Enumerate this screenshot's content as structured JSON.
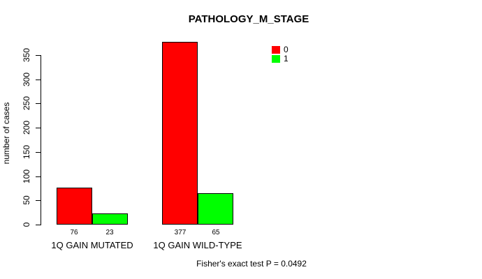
{
  "chart_data": {
    "type": "bar",
    "title": "PATHOLOGY_M_STAGE",
    "ylabel": "number of cases",
    "xlabel": "",
    "categories": [
      "1Q GAIN MUTATED",
      "1Q GAIN WILD-TYPE"
    ],
    "series": [
      {
        "name": "0",
        "color": "#ff0000",
        "values": [
          76,
          377
        ]
      },
      {
        "name": "1",
        "color": "#00ff00",
        "values": [
          23,
          65
        ]
      }
    ],
    "bar_value_labels": [
      [
        "76",
        "23"
      ],
      [
        "377",
        "65"
      ]
    ],
    "yticks": [
      0,
      50,
      100,
      150,
      200,
      250,
      300,
      350
    ],
    "ylim": [
      0,
      377
    ],
    "grid": false,
    "legend_position": "top-right",
    "bar_border_color": "#000000",
    "text_color": "#000000",
    "background_color": "#ffffff",
    "footnote": "Fisher's exact test P = 0.0492"
  }
}
